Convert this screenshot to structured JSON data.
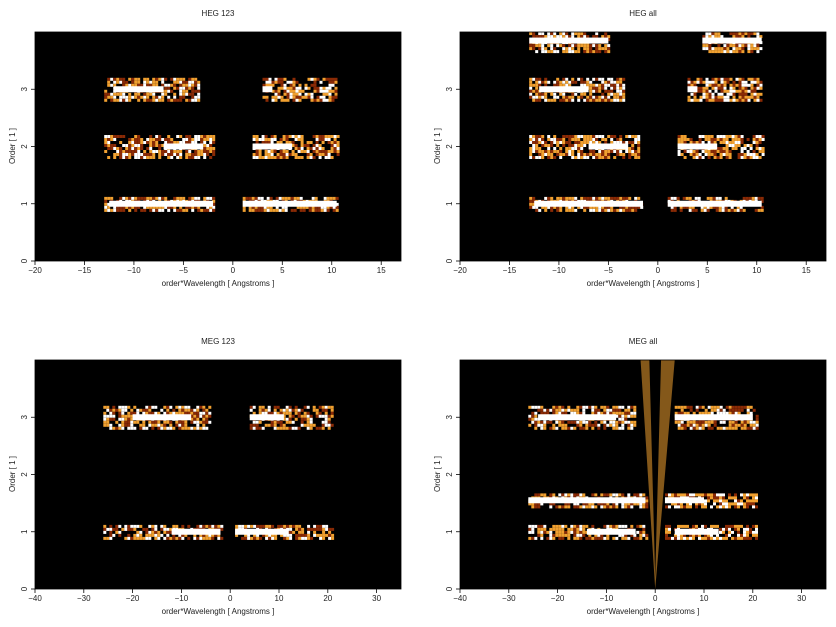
{
  "figure": {
    "panels": [
      {
        "title": "HEG 123",
        "xlabel": "order*Wavelength [ Angstroms ]",
        "ylabel": "Order [ 1 ]"
      },
      {
        "title": "HEG all",
        "xlabel": "order*Wavelength [ Angstroms ]",
        "ylabel": "Order [ 1 ]"
      },
      {
        "title": "MEG 123",
        "xlabel": "order*Wavelength [ Angstroms ]",
        "ylabel": "Order [ 1 ]"
      },
      {
        "title": "MEG all",
        "xlabel": "order*Wavelength [ Angstroms ]",
        "ylabel": "Order [ 1 ]"
      }
    ]
  },
  "colors": {
    "background": "#000000",
    "bright": "#ffffff",
    "mid": "#f0a030",
    "dim": "#8a2a05"
  },
  "chart_data": [
    {
      "type": "heatmap",
      "title": "HEG 123",
      "xlabel": "order*Wavelength [ Angstroms ]",
      "ylabel": "Order [ 1 ]",
      "xlim": [
        -20,
        17
      ],
      "ylim": [
        0,
        4
      ],
      "xticks": [
        -20,
        -15,
        -10,
        -5,
        0,
        5,
        10,
        15
      ],
      "yticks": [
        0,
        1,
        2,
        3
      ],
      "bands": [
        {
          "order": 1,
          "x": [
            -13,
            -2
          ],
          "bright_x": [
            -12.5,
            -2
          ]
        },
        {
          "order": 1,
          "x": [
            1,
            10.5
          ],
          "bright_x": [
            1,
            10.5
          ]
        },
        {
          "order": 2,
          "x": [
            -13,
            -2
          ],
          "bright_x": [
            -7,
            -3
          ]
        },
        {
          "order": 2,
          "x": [
            2,
            10.5
          ],
          "bright_x": [
            2,
            6
          ]
        },
        {
          "order": 3,
          "x": [
            -13,
            -3.5
          ],
          "bright_x": [
            -12,
            -7
          ]
        },
        {
          "order": 3,
          "x": [
            3,
            10.5
          ],
          "bright_x": [
            3,
            4
          ]
        }
      ]
    },
    {
      "type": "heatmap",
      "title": "HEG all",
      "xlabel": "order*Wavelength [ Angstroms ]",
      "ylabel": "Order [ 1 ]",
      "xlim": [
        -20,
        17
      ],
      "ylim": [
        0,
        4
      ],
      "xticks": [
        -20,
        -15,
        -10,
        -5,
        0,
        5,
        10,
        15
      ],
      "yticks": [
        0,
        1,
        2,
        3
      ],
      "bands": [
        {
          "order": 1,
          "x": [
            -13,
            -1.5
          ],
          "bright_x": [
            -12.5,
            -1.5
          ]
        },
        {
          "order": 1,
          "x": [
            1,
            10.5
          ],
          "bright_x": [
            1,
            10.5
          ]
        },
        {
          "order": 2,
          "x": [
            -13,
            -2
          ],
          "bright_x": [
            -7,
            -3
          ]
        },
        {
          "order": 2,
          "x": [
            2,
            10.5
          ],
          "bright_x": [
            2,
            6
          ]
        },
        {
          "order": 3,
          "x": [
            -13,
            -3.5
          ],
          "bright_x": [
            -12,
            -7
          ]
        },
        {
          "order": 3,
          "x": [
            3,
            10.5
          ],
          "bright_x": [
            3,
            4
          ]
        },
        {
          "order": 3.85,
          "x": [
            -13,
            -5
          ],
          "bright_x": [
            -13,
            -5
          ]
        },
        {
          "order": 3.85,
          "x": [
            4.5,
            10.5
          ],
          "bright_x": [
            4.5,
            10.5
          ]
        }
      ]
    },
    {
      "type": "heatmap",
      "title": "MEG 123",
      "xlabel": "order*Wavelength [ Angstroms ]",
      "ylabel": "Order [ 1 ]",
      "xlim": [
        -40,
        35
      ],
      "ylim": [
        0,
        4
      ],
      "xticks": [
        -40,
        -30,
        -20,
        -10,
        0,
        10,
        20,
        30
      ],
      "yticks": [
        0,
        1,
        2,
        3
      ],
      "bands": [
        {
          "order": 1,
          "x": [
            -26,
            -2
          ],
          "bright_x": [
            -12,
            -2
          ]
        },
        {
          "order": 1,
          "x": [
            1,
            21
          ],
          "bright_x": [
            1,
            12
          ]
        },
        {
          "order": 3,
          "x": [
            -26,
            -4
          ],
          "bright_x": [
            -20,
            -8
          ]
        },
        {
          "order": 3,
          "x": [
            4,
            21
          ],
          "bright_x": [
            4,
            11
          ]
        }
      ]
    },
    {
      "type": "heatmap",
      "title": "MEG all",
      "xlabel": "order*Wavelength [ Angstroms ]",
      "ylabel": "Order [ 1 ]",
      "xlim": [
        -40,
        35
      ],
      "ylim": [
        0,
        4
      ],
      "xticks": [
        -40,
        -30,
        -20,
        -10,
        0,
        10,
        20,
        30
      ],
      "yticks": [
        0,
        1,
        2,
        3
      ],
      "bands": [
        {
          "order": 1,
          "x": [
            -26,
            -2
          ],
          "bright_x": [
            -14,
            -4
          ]
        },
        {
          "order": 1,
          "x": [
            2,
            21
          ],
          "bright_x": [
            4,
            13
          ]
        },
        {
          "order": 1.55,
          "x": [
            -26,
            -2
          ],
          "bright_x": [
            -26,
            -2
          ]
        },
        {
          "order": 1.55,
          "x": [
            2,
            21
          ],
          "bright_x": [
            2,
            10
          ]
        },
        {
          "order": 3,
          "x": [
            -26,
            -4
          ],
          "bright_x": [
            -24,
            -8
          ]
        },
        {
          "order": 3,
          "x": [
            4,
            21
          ],
          "bright_x": [
            4,
            20
          ]
        }
      ],
      "zero_order_wedge": true
    }
  ]
}
